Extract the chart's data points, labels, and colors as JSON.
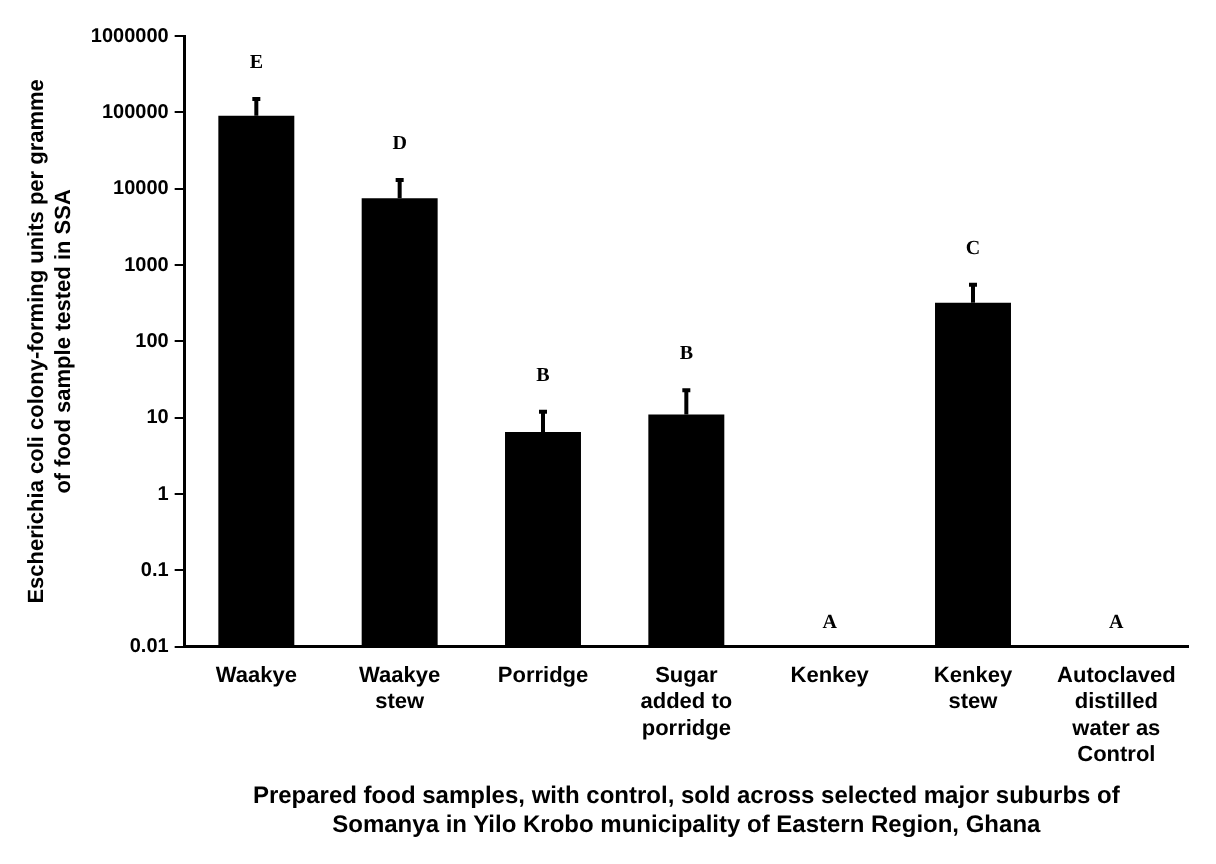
{
  "chart_data": {
    "type": "bar",
    "ylabel": "Escherichia coli colony-forming units per gramme of food sample tested in SSA",
    "xlabel": "Prepared food samples, with control, sold across selected major suburbs of Somanya in Yilo Krobo municipality of Eastern Region, Ghana",
    "categories": [
      "Waakye",
      "Waakye stew",
      "Porridge",
      "Sugar added to porridge",
      "Kenkey",
      "Kenkey stew",
      "Autoclaved distilled water as Control"
    ],
    "values": [
      90000,
      7500,
      6.5,
      11,
      null,
      320,
      null
    ],
    "errors": [
      [
        90000,
        150000
      ],
      [
        7500,
        13000
      ],
      [
        6.5,
        12
      ],
      [
        11,
        23
      ],
      null,
      [
        320,
        550
      ],
      null
    ],
    "color": "#000000",
    "log": true,
    "ylim": [
      0.01,
      1000000
    ],
    "yticks": [
      0.01,
      0.1,
      1,
      10,
      100,
      1000,
      10000,
      100000,
      1000000
    ],
    "grid": false,
    "legend": false,
    "annotations": [
      "E",
      "D",
      "B",
      "B",
      "A",
      "C",
      "A"
    ]
  }
}
